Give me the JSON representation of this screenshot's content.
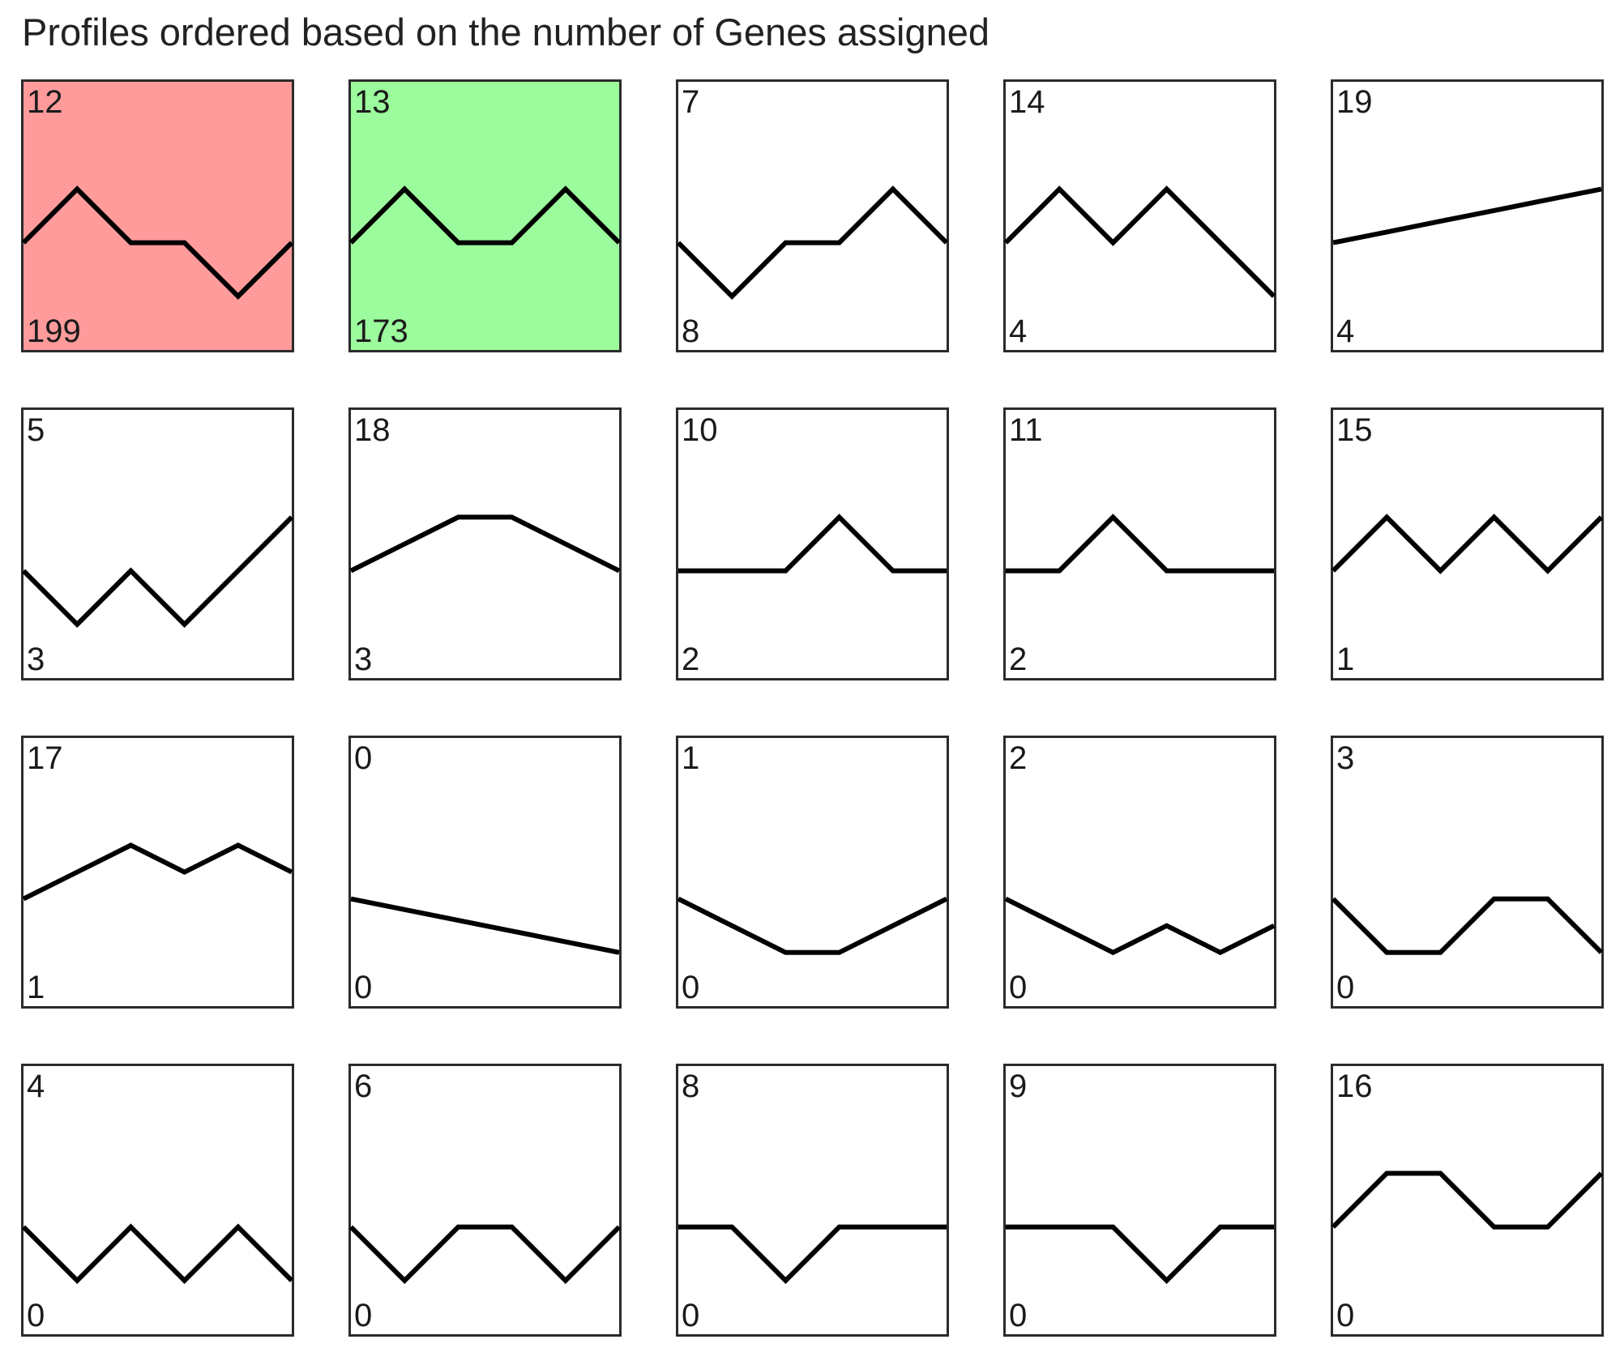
{
  "title": "Profiles ordered based on the number of Genes assigned",
  "colors": {
    "highlight_red": "#ff9b9b",
    "highlight_green": "#9cfb9c",
    "line": "#000000",
    "border": "#2b2b2b"
  },
  "chart_data": {
    "type": "line",
    "title": "Profiles ordered based on the number of Genes assigned",
    "time_points": [
      0,
      1,
      2,
      3,
      4,
      5
    ],
    "ylim": [
      -2,
      3
    ],
    "profiles": [
      {
        "id": "12",
        "genes": "199",
        "highlight": "red",
        "values": [
          0,
          1,
          0,
          0,
          -1,
          0
        ]
      },
      {
        "id": "13",
        "genes": "173",
        "highlight": "green",
        "values": [
          0,
          1,
          0,
          0,
          1,
          0
        ]
      },
      {
        "id": "7",
        "genes": "8",
        "highlight": "",
        "values": [
          0,
          -1,
          0,
          0,
          1,
          0
        ]
      },
      {
        "id": "14",
        "genes": "4",
        "highlight": "",
        "values": [
          0,
          1,
          0,
          1,
          0,
          -1
        ]
      },
      {
        "id": "19",
        "genes": "4",
        "highlight": "",
        "values": [
          0,
          0.2,
          0.4,
          0.6,
          0.8,
          1
        ]
      },
      {
        "id": "5",
        "genes": "3",
        "highlight": "",
        "values": [
          0,
          -1,
          0,
          -1,
          0,
          1
        ]
      },
      {
        "id": "18",
        "genes": "3",
        "highlight": "",
        "values": [
          0,
          0.5,
          1,
          1,
          0.5,
          0
        ]
      },
      {
        "id": "10",
        "genes": "2",
        "highlight": "",
        "values": [
          0,
          0,
          0,
          1,
          0,
          0
        ]
      },
      {
        "id": "11",
        "genes": "2",
        "highlight": "",
        "values": [
          0,
          0,
          1,
          0,
          0,
          0
        ]
      },
      {
        "id": "15",
        "genes": "1",
        "highlight": "",
        "values": [
          0,
          1,
          0,
          1,
          0,
          1
        ]
      },
      {
        "id": "17",
        "genes": "1",
        "highlight": "",
        "values": [
          0,
          0.5,
          1,
          0.5,
          1,
          0.5
        ]
      },
      {
        "id": "0",
        "genes": "0",
        "highlight": "",
        "values": [
          0,
          -0.2,
          -0.4,
          -0.6,
          -0.8,
          -1
        ]
      },
      {
        "id": "1",
        "genes": "0",
        "highlight": "",
        "values": [
          0,
          -0.5,
          -1,
          -1,
          -0.5,
          0
        ]
      },
      {
        "id": "2",
        "genes": "0",
        "highlight": "",
        "values": [
          0,
          -0.5,
          -1,
          -0.5,
          -1,
          -0.5
        ]
      },
      {
        "id": "3",
        "genes": "0",
        "highlight": "",
        "values": [
          0,
          -1,
          -1,
          0,
          0,
          -1
        ]
      },
      {
        "id": "4",
        "genes": "0",
        "highlight": "",
        "values": [
          0,
          -1,
          0,
          -1,
          0,
          -1
        ]
      },
      {
        "id": "6",
        "genes": "0",
        "highlight": "",
        "values": [
          0,
          -1,
          0,
          0,
          -1,
          0
        ]
      },
      {
        "id": "8",
        "genes": "0",
        "highlight": "",
        "values": [
          0,
          0,
          -1,
          0,
          0,
          0
        ]
      },
      {
        "id": "9",
        "genes": "0",
        "highlight": "",
        "values": [
          0,
          0,
          0,
          -1,
          0,
          0
        ]
      },
      {
        "id": "16",
        "genes": "0",
        "highlight": "",
        "values": [
          0,
          1,
          1,
          0,
          0,
          1
        ]
      }
    ]
  }
}
